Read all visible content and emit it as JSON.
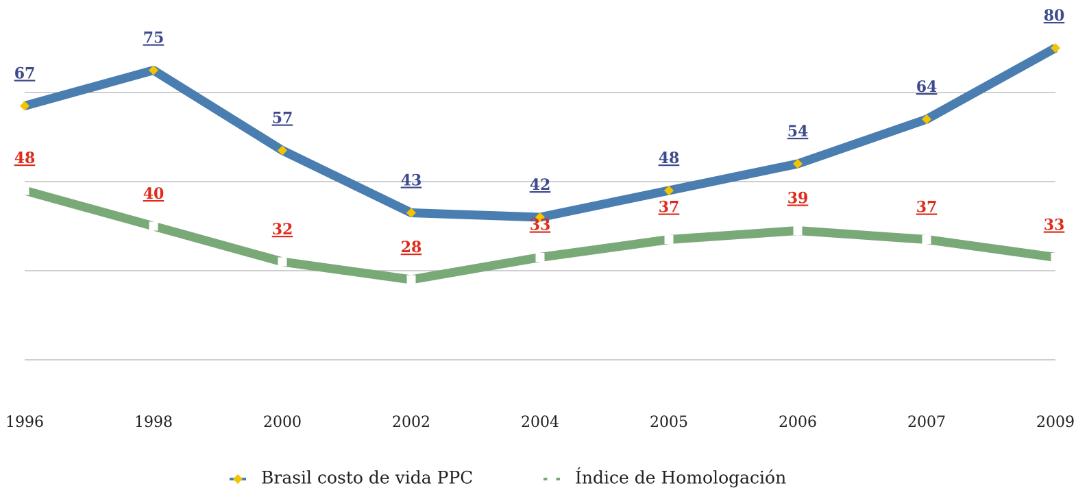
{
  "chart_data": {
    "type": "line",
    "categories": [
      "1996",
      "1998",
      "2000",
      "2002",
      "2004",
      "2005",
      "2006",
      "2007",
      "2009"
    ],
    "series": [
      {
        "name": "Brasil costo de vida PPC",
        "color": "#4a7db0",
        "marker_color": "#f5c400",
        "label_color": "#3d4a8c",
        "values": [
          67,
          75,
          57,
          43,
          42,
          48,
          54,
          64,
          80
        ]
      },
      {
        "name": "Índice de Homologación",
        "color": "#7aa978",
        "marker_color": "#ffffff",
        "label_color": "#e02a1a",
        "values": [
          48,
          40,
          32,
          28,
          33,
          37,
          39,
          37,
          33
        ]
      }
    ],
    "ylim": [
      0,
      85
    ],
    "yticks": [
      10,
      30,
      50,
      70
    ],
    "grid": true
  }
}
